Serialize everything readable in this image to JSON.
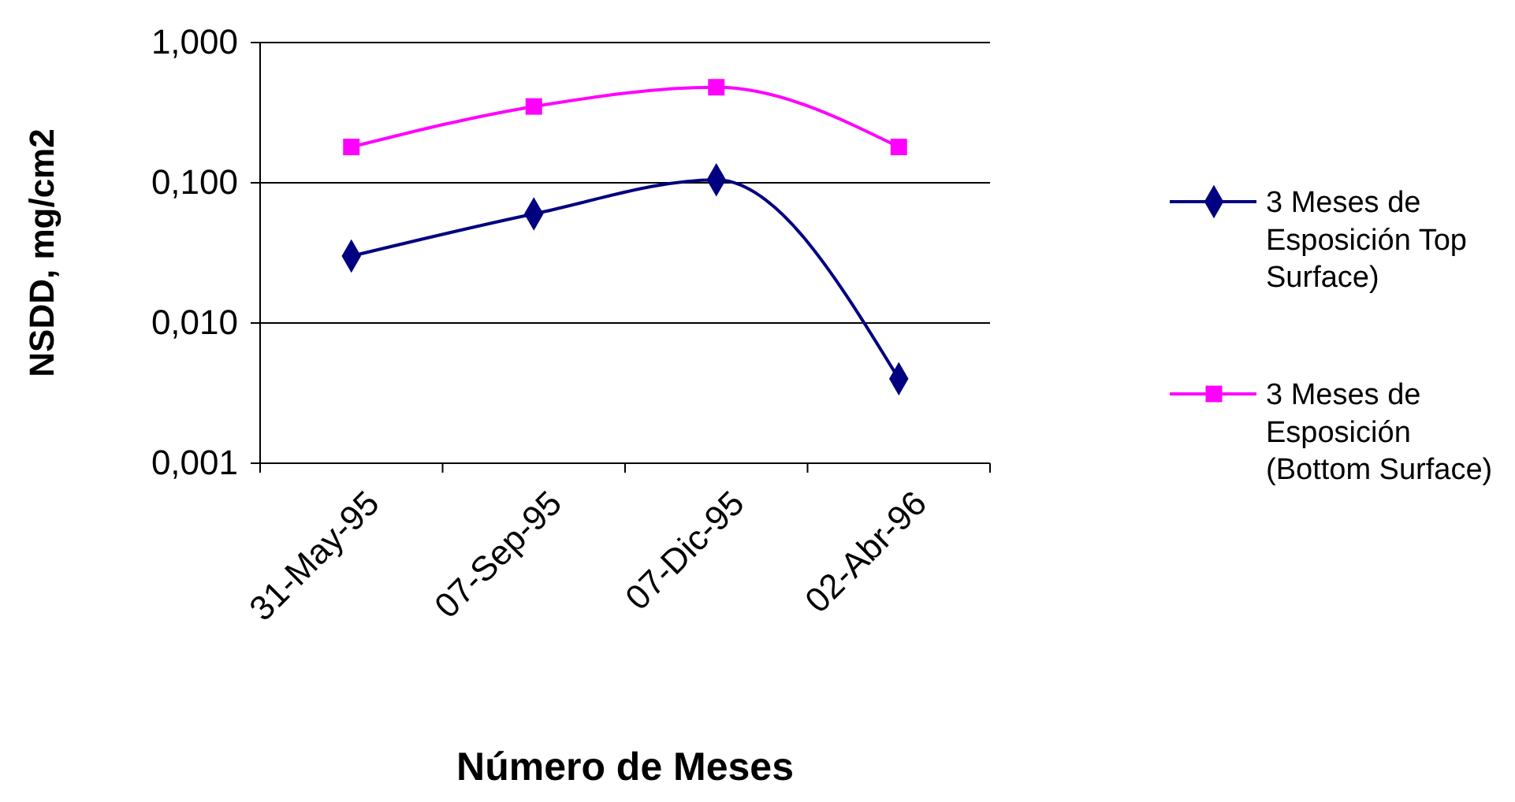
{
  "chart_data": {
    "type": "line",
    "xlabel": "Número de Meses",
    "ylabel": "NSDD, mg/cm2",
    "categories": [
      "31-May-95",
      "07-Sep-95",
      "07-Dic-95",
      "02-Abr-96"
    ],
    "log": "y",
    "ylim": [
      0.001,
      1
    ],
    "yticks": [
      {
        "value": 0.001,
        "label": "0,001"
      },
      {
        "value": 0.01,
        "label": "0,010"
      },
      {
        "value": 0.1,
        "label": "0,100"
      },
      {
        "value": 1,
        "label": "1,000"
      }
    ],
    "grid": "y",
    "legend": "right",
    "line_style": "solid",
    "series": [
      {
        "name": "3 Meses de Esposición Top Surface)",
        "color": "#000080",
        "marker": "diamond",
        "values": [
          0.03,
          0.06,
          0.105,
          0.004
        ]
      },
      {
        "name": "3 Meses de Esposición (Bottom Surface)",
        "color": "#ff00ff",
        "marker": "square",
        "values": [
          0.18,
          0.35,
          0.48,
          0.18
        ]
      }
    ]
  }
}
